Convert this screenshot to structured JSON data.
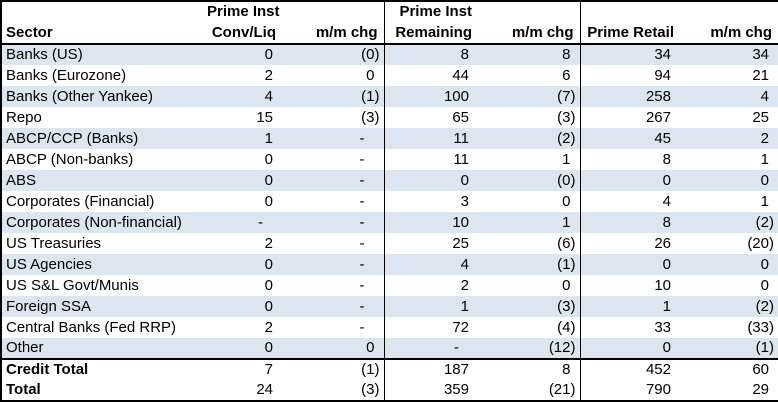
{
  "table": {
    "columns": [
      {
        "header_line1": "",
        "header_line2": "Sector"
      },
      {
        "header_line1": "Prime Inst",
        "header_line2": "Conv/Liq"
      },
      {
        "header_line1": "",
        "header_line2": "m/m chg"
      },
      {
        "header_line1": "Prime Inst",
        "header_line2": "Remaining"
      },
      {
        "header_line1": "",
        "header_line2": "m/m chg"
      },
      {
        "header_line1": "",
        "header_line2": "Prime Retail"
      },
      {
        "header_line1": "",
        "header_line2": "m/m chg"
      }
    ],
    "rows": [
      {
        "sector": "Banks (US)",
        "values": [
          "0",
          "(0)",
          "8",
          "8",
          "34",
          "34"
        ]
      },
      {
        "sector": "Banks (Eurozone)",
        "values": [
          "2",
          "0",
          "44",
          "6",
          "94",
          "21"
        ]
      },
      {
        "sector": "Banks (Other Yankee)",
        "values": [
          "4",
          "(1)",
          "100",
          "(7)",
          "258",
          "4"
        ]
      },
      {
        "sector": "Repo",
        "values": [
          "15",
          "(3)",
          "65",
          "(3)",
          "267",
          "25"
        ]
      },
      {
        "sector": "ABCP/CCP (Banks)",
        "values": [
          "1",
          "-",
          "11",
          "(2)",
          "45",
          "2"
        ]
      },
      {
        "sector": "ABCP (Non-banks)",
        "values": [
          "0",
          "-",
          "11",
          "1",
          "8",
          "1"
        ]
      },
      {
        "sector": "ABS",
        "values": [
          "0",
          "-",
          "0",
          "(0)",
          "0",
          "0"
        ]
      },
      {
        "sector": "Corporates (Financial)",
        "values": [
          "0",
          "-",
          "3",
          "0",
          "4",
          "1"
        ]
      },
      {
        "sector": "Corporates (Non-financial)",
        "values": [
          "-",
          "-",
          "10",
          "1",
          "8",
          "(2)"
        ]
      },
      {
        "sector": "US Treasuries",
        "values": [
          "2",
          "-",
          "25",
          "(6)",
          "26",
          "(20)"
        ]
      },
      {
        "sector": "US Agencies",
        "values": [
          "0",
          "-",
          "4",
          "(1)",
          "0",
          "0"
        ]
      },
      {
        "sector": "US S&L Govt/Munis",
        "values": [
          "0",
          "-",
          "2",
          "0",
          "10",
          "0"
        ]
      },
      {
        "sector": "Foreign SSA",
        "values": [
          "0",
          "-",
          "1",
          "(3)",
          "1",
          "(2)"
        ]
      },
      {
        "sector": "Central Banks (Fed RRP)",
        "values": [
          "2",
          "-",
          "72",
          "(4)",
          "33",
          "(33)"
        ]
      },
      {
        "sector": "Other",
        "values": [
          "0",
          "0",
          "-",
          "(12)",
          "0",
          "(1)"
        ]
      }
    ],
    "total_rows": [
      {
        "sector": "Credit Total",
        "values": [
          "7",
          "(1)",
          "187",
          "8",
          "452",
          "60"
        ]
      },
      {
        "sector": "Total",
        "values": [
          "24",
          "(3)",
          "359",
          "(21)",
          "790",
          "29"
        ]
      }
    ],
    "colors": {
      "band": "#DCE6F1",
      "border": "#000000",
      "text": "#000000",
      "background": "#FFFFFF"
    }
  }
}
